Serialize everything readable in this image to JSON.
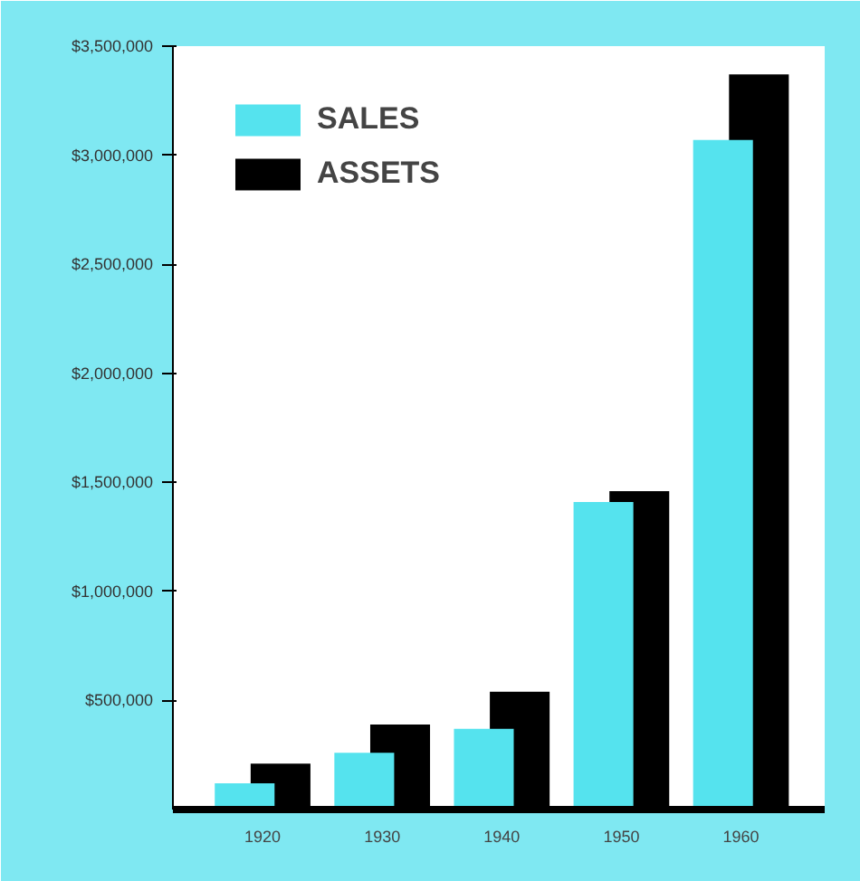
{
  "chart_data": {
    "type": "bar",
    "categories": [
      "1920",
      "1930",
      "1940",
      "1950",
      "1960"
    ],
    "series": [
      {
        "name": "SALES",
        "color": "#55e3ee",
        "values": [
          120000,
          260000,
          370000,
          1410000,
          3070000
        ]
      },
      {
        "name": "ASSETS",
        "color": "#000000",
        "values": [
          210000,
          390000,
          540000,
          1460000,
          3370000
        ]
      }
    ],
    "ylim": [
      0,
      3500000
    ],
    "yticks": [
      {
        "value": 500000,
        "label": "$500,000"
      },
      {
        "value": 1000000,
        "label": "$1,000,000"
      },
      {
        "value": 1500000,
        "label": "$1,500,000"
      },
      {
        "value": 2000000,
        "label": "$2,000,000"
      },
      {
        "value": 2500000,
        "label": "$2,500,000"
      },
      {
        "value": 3000000,
        "label": "$3,000,000"
      },
      {
        "value": 3500000,
        "label": "$3,500,000"
      }
    ],
    "grid": false,
    "legend": "top left"
  }
}
